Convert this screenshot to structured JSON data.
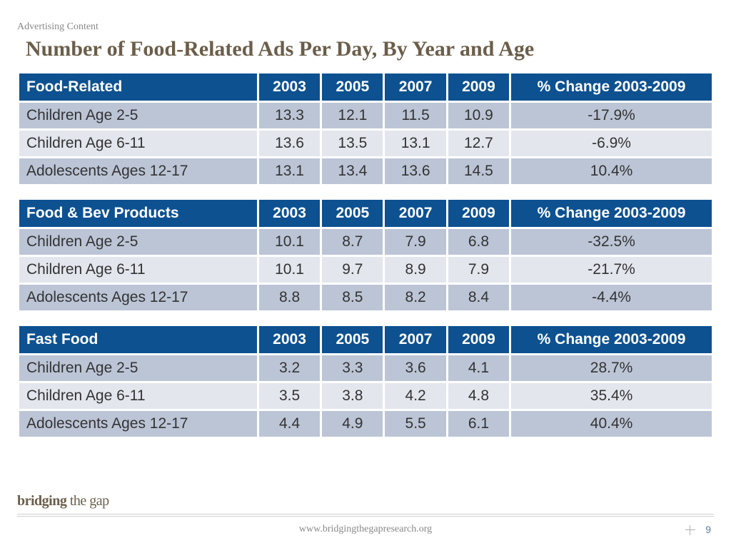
{
  "section_label": "Advertising Content",
  "title": "Number of Food-Related Ads Per Day, By Year and Age",
  "columns": {
    "years": [
      "2003",
      "2005",
      "2007",
      "2009"
    ],
    "change_label": "% Change 2003-2009"
  },
  "tables": [
    {
      "header": "Food-Related",
      "rows": [
        {
          "label": "Children Age 2-5",
          "values": [
            "13.3",
            "12.1",
            "11.5",
            "10.9"
          ],
          "change": "-17.9%"
        },
        {
          "label": "Children Age 6-11",
          "values": [
            "13.6",
            "13.5",
            "13.1",
            "12.7"
          ],
          "change": "-6.9%"
        },
        {
          "label": "Adolescents Ages 12-17",
          "values": [
            "13.1",
            "13.4",
            "13.6",
            "14.5"
          ],
          "change": "10.4%"
        }
      ]
    },
    {
      "header": "Food & Bev Products",
      "rows": [
        {
          "label": "Children Age 2-5",
          "values": [
            "10.1",
            "8.7",
            "7.9",
            "6.8"
          ],
          "change": "-32.5%"
        },
        {
          "label": "Children Age 6-11",
          "values": [
            "10.1",
            "9.7",
            "8.9",
            "7.9"
          ],
          "change": "-21.7%"
        },
        {
          "label": "Adolescents Ages 12-17",
          "values": [
            "8.8",
            "8.5",
            "8.2",
            "8.4"
          ],
          "change": "-4.4%"
        }
      ]
    },
    {
      "header": "Fast Food",
      "rows": [
        {
          "label": "Children Age 2-5",
          "values": [
            "3.2",
            "3.3",
            "3.6",
            "4.1"
          ],
          "change": "28.7%"
        },
        {
          "label": "Children Age 6-11",
          "values": [
            "3.5",
            "3.8",
            "4.2",
            "4.8"
          ],
          "change": "35.4%"
        },
        {
          "label": "Adolescents Ages 12-17",
          "values": [
            "4.4",
            "4.9",
            "5.5",
            "6.1"
          ],
          "change": "40.4%"
        }
      ]
    }
  ],
  "footer": {
    "brand_bold": "bridging",
    "brand_light": " the gap",
    "url": "www.bridgingthegapresearch.org",
    "page": "9"
  },
  "style": {
    "header_bg": "#0d5191",
    "header_fg": "#ffffff",
    "row_odd_bg": "#bcc5d6",
    "row_even_bg": "#e3e6ed",
    "title_color": "#6b5e4a",
    "label_color": "#888888",
    "cell_fontsize": 21,
    "title_fontsize": 30
  }
}
